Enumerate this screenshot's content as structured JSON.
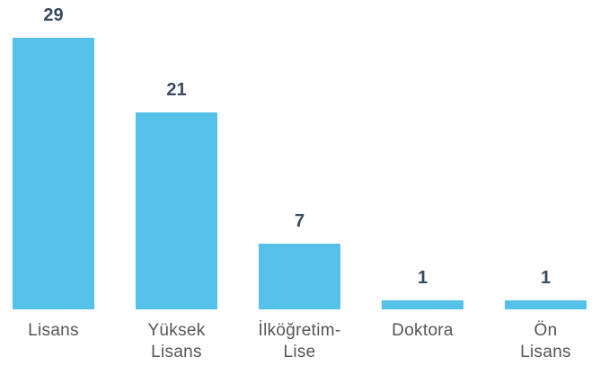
{
  "chart_data": {
    "type": "bar",
    "categories": [
      "Lisans",
      "Yüksek Lisans",
      "İlköğretim-Lise",
      "Doktora",
      "Ön Lisans"
    ],
    "values": [
      29,
      21,
      7,
      1,
      1
    ],
    "color": "#55c0e8"
  }
}
